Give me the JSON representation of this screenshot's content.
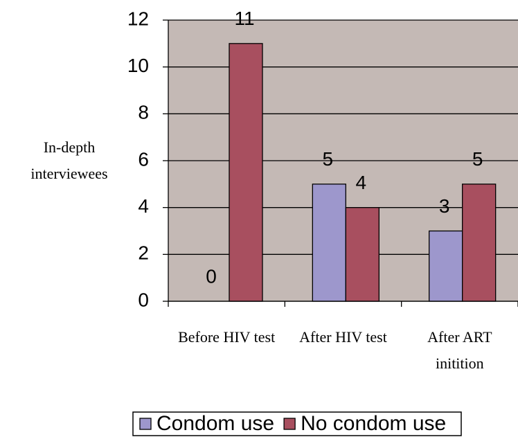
{
  "chart_data": {
    "type": "bar",
    "ylabel": "In-depth interviewees",
    "categories": [
      "Before HIV test",
      "After HIV test",
      "After ART initition"
    ],
    "series": [
      {
        "name": "Condom use",
        "color": "#9d97cc",
        "values": [
          0,
          5,
          3
        ]
      },
      {
        "name": "No condom use",
        "color": "#a84f5f",
        "values": [
          11,
          4,
          5
        ]
      }
    ],
    "ylim": [
      0,
      12
    ],
    "yticks": [
      0,
      2,
      4,
      6,
      8,
      10,
      12
    ],
    "grid": true,
    "plot_background": "#c4b9b5",
    "legend": "bottom"
  }
}
